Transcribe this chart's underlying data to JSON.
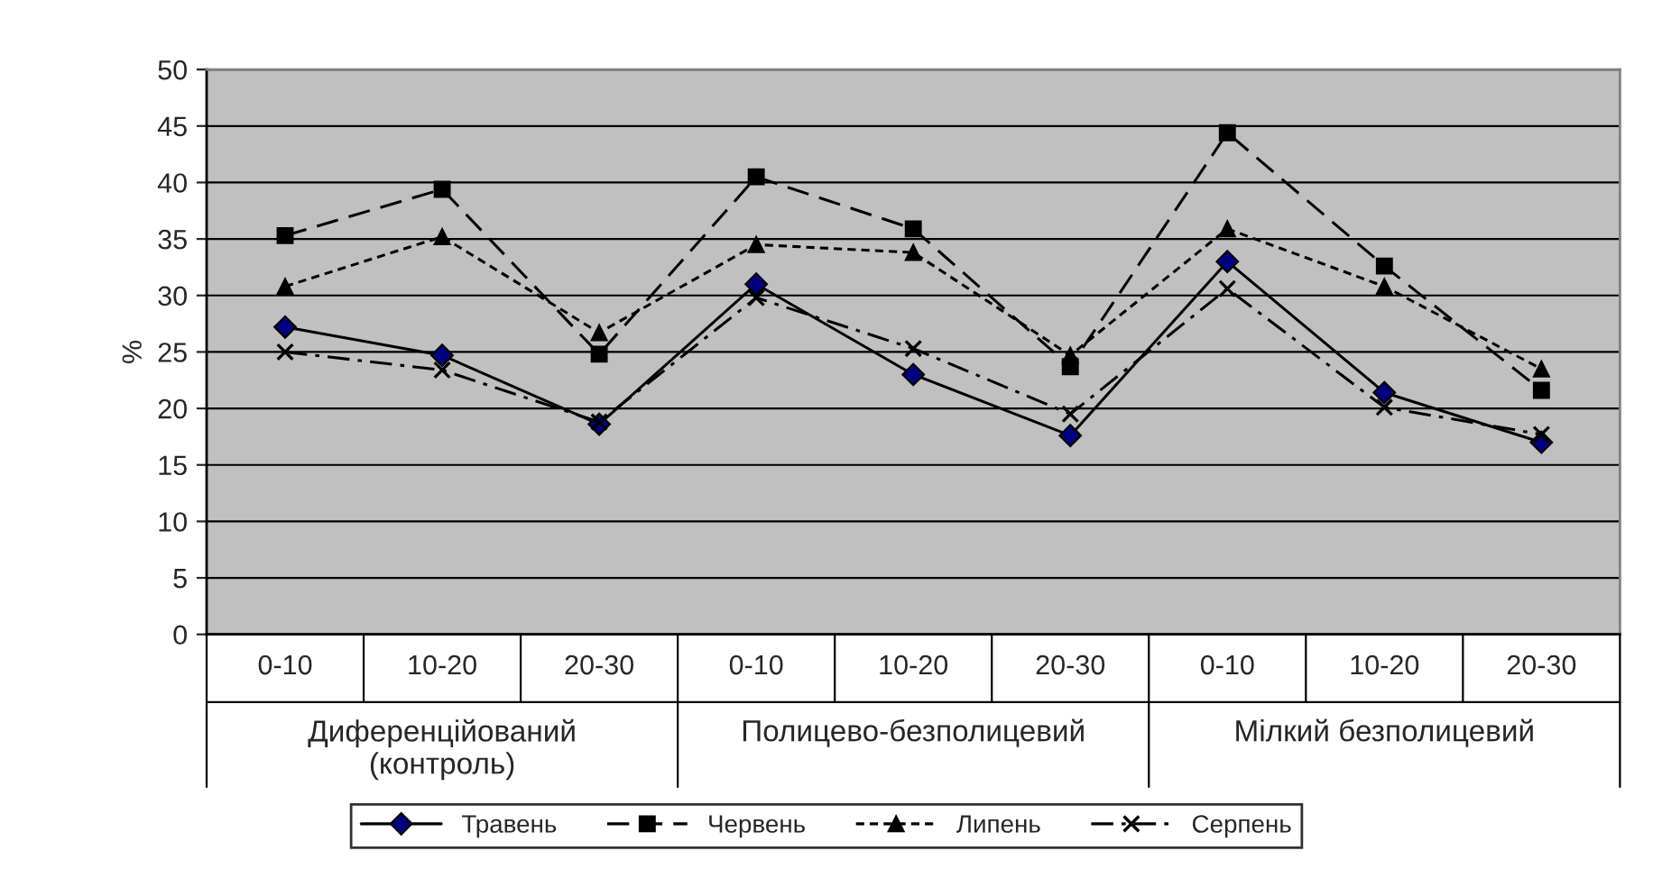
{
  "chart_data": {
    "type": "line",
    "ylabel": "%",
    "categories": [
      "0-10",
      "10-20",
      "20-30",
      "0-10",
      "10-20",
      "20-30",
      "0-10",
      "10-20",
      "20-30"
    ],
    "annotations": [
      "Диференційований\n(контроль)",
      "Полицево-безполицевий",
      "Мілкий безполицевий"
    ],
    "series": [
      {
        "name": "Травень",
        "color": "#000080",
        "marker": "diamond",
        "line_style": "solid",
        "values": [
          27.2,
          24.7,
          18.6,
          31.0,
          23.0,
          17.6,
          33.0,
          21.4,
          17.0
        ]
      },
      {
        "name": "Червень",
        "color": "#000000",
        "marker": "square",
        "line_style": "dashed",
        "values": [
          35.3,
          39.4,
          24.8,
          40.5,
          35.9,
          23.7,
          44.4,
          32.6,
          21.6
        ]
      },
      {
        "name": "Липень",
        "color": "#000000",
        "marker": "triangle",
        "line_style": "dotted",
        "values": [
          30.8,
          35.2,
          26.7,
          34.5,
          33.8,
          24.7,
          35.9,
          30.8,
          23.5
        ]
      },
      {
        "name": "Серпень",
        "color": "#000000",
        "marker": "cross",
        "line_style": "dashdot",
        "values": [
          25.0,
          23.4,
          18.8,
          29.8,
          25.3,
          19.5,
          30.6,
          20.1,
          17.7
        ]
      }
    ],
    "ylim": [
      0,
      50
    ],
    "yticks": [
      0,
      5,
      10,
      15,
      20,
      25,
      30,
      35,
      40,
      45,
      50
    ],
    "grid": "y",
    "legend": "bottom"
  }
}
